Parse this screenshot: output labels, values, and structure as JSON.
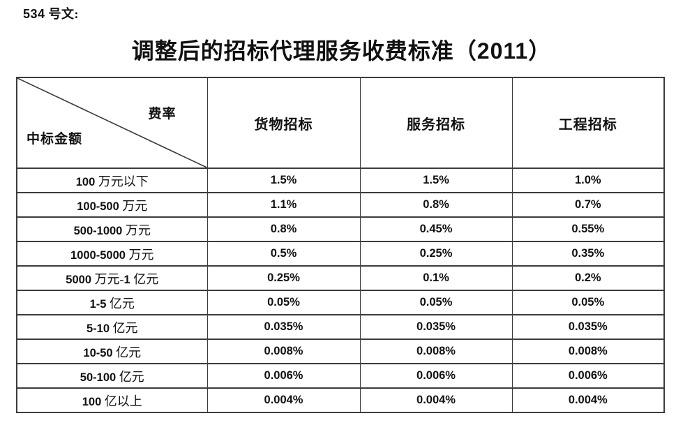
{
  "doc": {
    "note": "534 号文:",
    "title": "调整后的招标代理服务收费标准（2011）"
  },
  "table": {
    "corner": {
      "top_right": "费率",
      "bottom_left": "中标金额"
    },
    "columns": [
      "货物招标",
      "服务招标",
      "工程招标"
    ],
    "rows": [
      {
        "amount": "100 万元以下",
        "goods": "1.5%",
        "service": "1.5%",
        "engineering": "1.0%"
      },
      {
        "amount": "100-500 万元",
        "goods": "1.1%",
        "service": "0.8%",
        "engineering": "0.7%"
      },
      {
        "amount": "500-1000 万元",
        "goods": "0.8%",
        "service": "0.45%",
        "engineering": "0.55%"
      },
      {
        "amount": "1000-5000 万元",
        "goods": "0.5%",
        "service": "0.25%",
        "engineering": "0.35%"
      },
      {
        "amount": "5000 万元-1 亿元",
        "goods": "0.25%",
        "service": "0.1%",
        "engineering": "0.2%"
      },
      {
        "amount": "1-5 亿元",
        "goods": "0.05%",
        "service": "0.05%",
        "engineering": "0.05%"
      },
      {
        "amount": "5-10 亿元",
        "goods": "0.035%",
        "service": "0.035%",
        "engineering": "0.035%"
      },
      {
        "amount": "10-50 亿元",
        "goods": "0.008%",
        "service": "0.008%",
        "engineering": "0.008%"
      },
      {
        "amount": "50-100 亿元",
        "goods": "0.006%",
        "service": "0.006%",
        "engineering": "0.006%"
      },
      {
        "amount": "100 亿以上",
        "goods": "0.004%",
        "service": "0.004%",
        "engineering": "0.004%"
      }
    ]
  },
  "colors": {
    "text": "#111111",
    "border": "#3c3c3c",
    "background": "#ffffff"
  }
}
